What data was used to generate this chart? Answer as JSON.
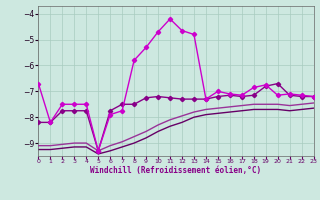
{
  "xlabel": "Windchill (Refroidissement éolien,°C)",
  "xlim": [
    0,
    23
  ],
  "ylim": [
    -9.5,
    -3.7
  ],
  "yticks": [
    -9,
    -8,
    -7,
    -6,
    -5,
    -4
  ],
  "xticks": [
    0,
    1,
    2,
    3,
    4,
    5,
    6,
    7,
    8,
    9,
    10,
    11,
    12,
    13,
    14,
    15,
    16,
    17,
    18,
    19,
    20,
    21,
    22,
    23
  ],
  "bg_color": "#cde8e0",
  "grid_color": "#a8ccbf",
  "lines": [
    {
      "x": [
        0,
        1,
        2,
        3,
        4,
        5,
        6,
        7,
        8,
        9,
        10,
        11,
        12,
        13,
        14,
        15,
        16,
        17,
        18,
        19,
        20,
        21,
        22,
        23
      ],
      "y": [
        -6.7,
        -8.2,
        -7.5,
        -7.5,
        -7.5,
        -9.3,
        -7.9,
        -7.75,
        -5.8,
        -5.3,
        -4.7,
        -4.2,
        -4.65,
        -4.8,
        -7.3,
        -7.0,
        -7.1,
        -7.15,
        -6.85,
        -6.75,
        -7.15,
        -7.1,
        -7.15,
        -7.2
      ],
      "color": "#cc00cc",
      "lw": 1.0,
      "marker": "D",
      "ms": 2.2,
      "zorder": 5
    },
    {
      "x": [
        0,
        1,
        2,
        3,
        4,
        5,
        6,
        7,
        8,
        9,
        10,
        11,
        12,
        13,
        14,
        15,
        16,
        17,
        18,
        19,
        20,
        21,
        22,
        23
      ],
      "y": [
        -8.2,
        -8.2,
        -7.75,
        -7.75,
        -7.75,
        -9.3,
        -7.75,
        -7.5,
        -7.5,
        -7.25,
        -7.2,
        -7.25,
        -7.3,
        -7.3,
        -7.3,
        -7.2,
        -7.15,
        -7.2,
        -7.15,
        -6.8,
        -6.7,
        -7.15,
        -7.2,
        -7.2
      ],
      "color": "#880088",
      "lw": 1.0,
      "marker": "D",
      "ms": 2.2,
      "zorder": 4
    },
    {
      "x": [
        0,
        1,
        2,
        3,
        4,
        5,
        6,
        7,
        8,
        9,
        10,
        11,
        12,
        13,
        14,
        15,
        16,
        17,
        18,
        19,
        20,
        21,
        22,
        23
      ],
      "y": [
        -9.1,
        -9.1,
        -9.05,
        -9.0,
        -9.0,
        -9.3,
        -9.1,
        -8.95,
        -8.75,
        -8.55,
        -8.3,
        -8.1,
        -7.95,
        -7.8,
        -7.7,
        -7.65,
        -7.6,
        -7.55,
        -7.5,
        -7.5,
        -7.5,
        -7.55,
        -7.5,
        -7.45
      ],
      "color": "#993399",
      "lw": 1.0,
      "marker": null,
      "ms": 0,
      "zorder": 3
    },
    {
      "x": [
        0,
        1,
        2,
        3,
        4,
        5,
        6,
        7,
        8,
        9,
        10,
        11,
        12,
        13,
        14,
        15,
        16,
        17,
        18,
        19,
        20,
        21,
        22,
        23
      ],
      "y": [
        -9.25,
        -9.25,
        -9.2,
        -9.15,
        -9.15,
        -9.42,
        -9.3,
        -9.15,
        -9.0,
        -8.8,
        -8.55,
        -8.35,
        -8.2,
        -8.0,
        -7.9,
        -7.85,
        -7.8,
        -7.75,
        -7.7,
        -7.7,
        -7.7,
        -7.75,
        -7.7,
        -7.65
      ],
      "color": "#660066",
      "lw": 1.0,
      "marker": null,
      "ms": 0,
      "zorder": 2
    }
  ]
}
